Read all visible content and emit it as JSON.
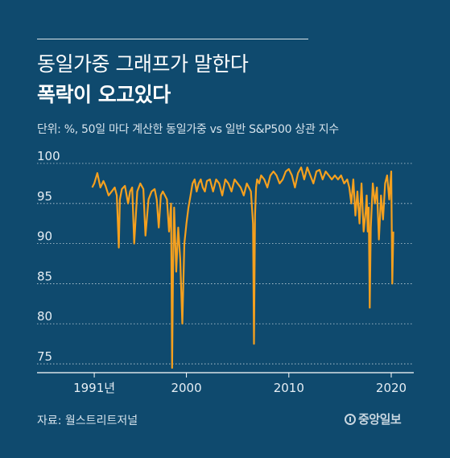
{
  "header": {
    "title_line1": "동일가중 그래프가 말한다",
    "title_line2": "폭락이 오고있다",
    "subtitle": "단위: %, 50일 마다 계산한 동일가중 vs 일반 S&P500 상관 지수"
  },
  "footer": {
    "source": "자료: 월스트리트저널",
    "logo_text": "중앙일보"
  },
  "colors": {
    "background": "#0f4a6e",
    "line": "#f5a01e",
    "grid": "#ffffff"
  },
  "chart_data": {
    "type": "line",
    "title": "",
    "xlabel": "",
    "ylabel": "",
    "ylim": [
      74,
      100
    ],
    "xlim": [
      1989.5,
      2022.2
    ],
    "yticks": [
      100,
      95,
      90,
      85,
      80,
      75
    ],
    "xticks": [
      {
        "value": 1991,
        "label": "1991년"
      },
      {
        "value": 2000,
        "label": "2000"
      },
      {
        "value": 2010,
        "label": "2010"
      },
      {
        "value": 2020,
        "label": "2020"
      }
    ],
    "grid": true,
    "series": [
      {
        "x": [
          1990.8,
          1991.0,
          1991.3,
          1991.6,
          1991.9,
          1992.1,
          1992.4,
          1992.7,
          1993.0,
          1993.2,
          1993.4,
          1993.5,
          1993.7,
          1994.0,
          1994.3,
          1994.5,
          1994.7,
          1994.9,
          1995.2,
          1995.5,
          1995.8,
          1996.0,
          1996.3,
          1996.6,
          1996.9,
          1997.1,
          1997.3,
          1997.5,
          1997.7,
          1997.9,
          1998.1,
          1998.3,
          1998.5,
          1998.6,
          1998.7,
          1998.8,
          1999.0,
          1999.2,
          1999.4,
          1999.6,
          1999.8,
          2000.0,
          2000.2,
          2000.4,
          2000.6,
          2000.8,
          2001.0,
          2001.2,
          2001.4,
          2001.6,
          2001.8,
          2002.0,
          2002.3,
          2002.6,
          2002.9,
          2003.2,
          2003.5,
          2003.8,
          2004.1,
          2004.4,
          2004.7,
          2005.0,
          2005.3,
          2005.6,
          2005.9,
          2006.1,
          2006.3,
          2006.5,
          2006.6,
          2006.7,
          2006.8,
          2006.9,
          2007.1,
          2007.3,
          2007.6,
          2007.9,
          2008.2,
          2008.5,
          2008.8,
          2009.1,
          2009.4,
          2009.7,
          2010.0,
          2010.3,
          2010.6,
          2010.9,
          2011.2,
          2011.5,
          2011.8,
          2012.1,
          2012.4,
          2012.7,
          2013.0,
          2013.3,
          2013.6,
          2013.9,
          2014.2,
          2014.5,
          2014.8,
          2015.1,
          2015.4,
          2015.7,
          2015.9,
          2016.1,
          2016.3,
          2016.5,
          2016.7,
          2016.9,
          2017.1,
          2017.3,
          2017.5,
          2017.6,
          2017.7,
          2017.8,
          2017.9,
          2018.0,
          2018.2,
          2018.4,
          2018.6,
          2018.8,
          2019.0,
          2019.2,
          2019.4,
          2019.6,
          2019.8,
          2020.0,
          2020.1,
          2020.2
        ],
        "y": [
          97.0,
          97.5,
          98.8,
          97.0,
          97.8,
          97.2,
          96.0,
          96.5,
          97.0,
          96.0,
          89.5,
          95.5,
          96.8,
          97.2,
          95.0,
          96.5,
          97.0,
          90.0,
          96.5,
          97.5,
          96.8,
          91.0,
          95.5,
          96.5,
          96.8,
          95.5,
          92.0,
          96.0,
          96.5,
          96.0,
          95.5,
          91.5,
          95.0,
          74.5,
          87.0,
          94.5,
          86.5,
          92.0,
          88.0,
          80.0,
          90.0,
          92.5,
          94.5,
          96.0,
          97.5,
          98.0,
          96.5,
          97.5,
          98.0,
          97.0,
          96.5,
          97.8,
          98.0,
          96.5,
          98.0,
          97.5,
          96.0,
          98.0,
          97.5,
          96.5,
          98.0,
          97.5,
          97.0,
          96.0,
          97.5,
          97.0,
          96.5,
          92.5,
          77.5,
          93.5,
          97.0,
          98.0,
          97.5,
          98.5,
          98.0,
          97.0,
          98.5,
          99.0,
          98.5,
          97.5,
          98.0,
          99.0,
          99.3,
          98.5,
          97.0,
          98.8,
          99.5,
          98.0,
          99.5,
          98.5,
          97.5,
          99.0,
          99.2,
          98.0,
          99.0,
          98.5,
          98.0,
          98.5,
          98.0,
          98.5,
          97.5,
          98.0,
          97.0,
          95.0,
          98.0,
          93.5,
          96.5,
          92.5,
          97.5,
          91.5,
          94.0,
          96.0,
          91.5,
          94.5,
          82.0,
          92.0,
          97.5,
          95.0,
          97.0,
          90.5,
          96.0,
          93.0,
          97.5,
          98.5,
          95.5,
          99.0,
          85.0,
          91.5
        ]
      }
    ]
  }
}
